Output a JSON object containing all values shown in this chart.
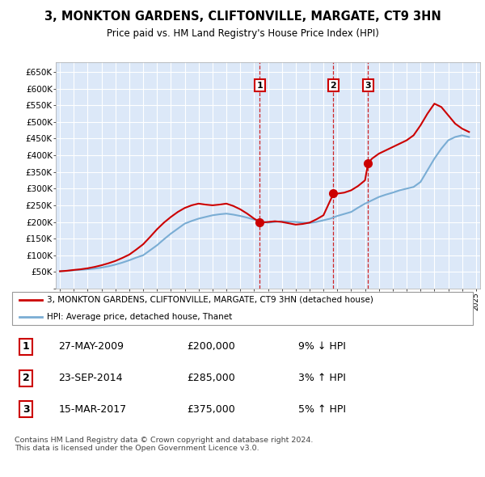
{
  "title": "3, MONKTON GARDENS, CLIFTONVILLE, MARGATE, CT9 3HN",
  "subtitle": "Price paid vs. HM Land Registry's House Price Index (HPI)",
  "plot_bg_color": "#dce8f8",
  "ylim": [
    0,
    680000
  ],
  "yticks": [
    0,
    50000,
    100000,
    150000,
    200000,
    250000,
    300000,
    350000,
    400000,
    450000,
    500000,
    550000,
    600000,
    650000
  ],
  "ytick_labels": [
    "",
    "£50K",
    "£100K",
    "£150K",
    "£200K",
    "£250K",
    "£300K",
    "£350K",
    "£400K",
    "£450K",
    "£500K",
    "£550K",
    "£600K",
    "£650K"
  ],
  "sale_dates": [
    "2009-05-27",
    "2014-09-23",
    "2017-03-15"
  ],
  "sale_years": [
    2009.41,
    2014.72,
    2017.21
  ],
  "sale_prices": [
    200000,
    285000,
    375000
  ],
  "sale_labels": [
    "1",
    "2",
    "3"
  ],
  "sale_hpi_pct": [
    "9% ↓ HPI",
    "3% ↑ HPI",
    "5% ↑ HPI"
  ],
  "sale_date_labels": [
    "27-MAY-2009",
    "23-SEP-2014",
    "15-MAR-2017"
  ],
  "sale_price_labels": [
    "£200,000",
    "£285,000",
    "£375,000"
  ],
  "legend_line1": "3, MONKTON GARDENS, CLIFTONVILLE, MARGATE, CT9 3HN (detached house)",
  "legend_line2": "HPI: Average price, detached house, Thanet",
  "footer": "Contains HM Land Registry data © Crown copyright and database right 2024.\nThis data is licensed under the Open Government Licence v3.0.",
  "line_color_red": "#cc0000",
  "line_color_blue": "#7aadd4",
  "hpi_line": {
    "years": [
      1995.0,
      1995.5,
      1996.0,
      1996.5,
      1997.0,
      1997.5,
      1998.0,
      1998.5,
      1999.0,
      1999.5,
      2000.0,
      2000.5,
      2001.0,
      2001.5,
      2002.0,
      2002.5,
      2003.0,
      2003.5,
      2004.0,
      2004.5,
      2005.0,
      2005.5,
      2006.0,
      2006.5,
      2007.0,
      2007.5,
      2008.0,
      2008.5,
      2009.0,
      2009.5,
      2010.0,
      2010.5,
      2011.0,
      2011.5,
      2012.0,
      2012.5,
      2013.0,
      2013.5,
      2014.0,
      2014.5,
      2015.0,
      2015.5,
      2016.0,
      2016.5,
      2017.0,
      2017.5,
      2018.0,
      2018.5,
      2019.0,
      2019.5,
      2020.0,
      2020.5,
      2021.0,
      2021.5,
      2022.0,
      2022.5,
      2023.0,
      2023.5,
      2024.0,
      2024.5
    ],
    "values": [
      52000,
      53000,
      55000,
      56500,
      58000,
      60000,
      63000,
      67000,
      72000,
      78000,
      85000,
      93000,
      100000,
      115000,
      130000,
      148000,
      165000,
      180000,
      195000,
      203000,
      210000,
      215000,
      220000,
      223000,
      225000,
      222000,
      218000,
      213000,
      207000,
      202000,
      198000,
      200000,
      202000,
      201000,
      200000,
      198000,
      197000,
      200000,
      205000,
      210000,
      218000,
      224000,
      230000,
      243000,
      255000,
      265000,
      275000,
      282000,
      288000,
      295000,
      300000,
      305000,
      320000,
      355000,
      390000,
      420000,
      445000,
      455000,
      460000,
      455000
    ]
  },
  "price_line": {
    "years": [
      1995.0,
      1995.5,
      1996.0,
      1996.5,
      1997.0,
      1997.5,
      1998.0,
      1998.5,
      1999.0,
      1999.5,
      2000.0,
      2000.5,
      2001.0,
      2001.5,
      2002.0,
      2002.5,
      2003.0,
      2003.5,
      2004.0,
      2004.5,
      2005.0,
      2005.5,
      2006.0,
      2006.5,
      2007.0,
      2007.5,
      2008.0,
      2008.5,
      2009.0,
      2009.41,
      2009.5,
      2010.0,
      2010.5,
      2011.0,
      2011.5,
      2012.0,
      2012.5,
      2013.0,
      2013.5,
      2014.0,
      2014.72,
      2015.0,
      2015.5,
      2016.0,
      2016.5,
      2017.0,
      2017.21,
      2017.5,
      2018.0,
      2018.5,
      2019.0,
      2019.5,
      2020.0,
      2020.5,
      2021.0,
      2021.5,
      2022.0,
      2022.5,
      2023.0,
      2023.5,
      2024.0,
      2024.5
    ],
    "values": [
      52000,
      53500,
      56000,
      58000,
      61000,
      65000,
      70000,
      76000,
      83000,
      92000,
      102000,
      117000,
      133000,
      155000,
      178000,
      198000,
      215000,
      230000,
      242000,
      250000,
      255000,
      252000,
      250000,
      252000,
      255000,
      248000,
      238000,
      225000,
      210000,
      200000,
      198000,
      200000,
      202000,
      200000,
      196000,
      192000,
      194000,
      198000,
      208000,
      220000,
      285000,
      285000,
      288000,
      295000,
      308000,
      325000,
      375000,
      390000,
      405000,
      415000,
      425000,
      435000,
      445000,
      460000,
      490000,
      525000,
      555000,
      545000,
      520000,
      495000,
      480000,
      470000
    ]
  }
}
